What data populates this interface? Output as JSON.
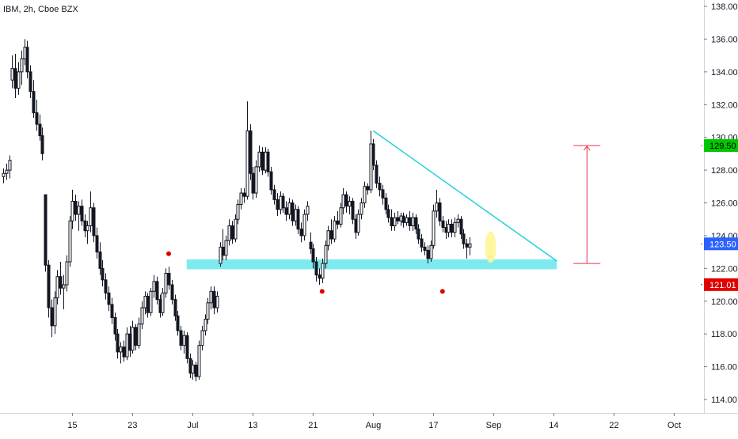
{
  "symbol": "IBM, 2h, Cboe BZX",
  "chart_data": {
    "type": "candlestick",
    "title": "IBM, 2h, Cboe BZX",
    "ylim": [
      113.5,
      138.5
    ],
    "y_ticks": [
      114,
      116,
      118,
      120,
      122,
      124,
      126,
      128,
      130,
      132,
      134,
      136,
      138
    ],
    "y_tick_labels": [
      "114.00",
      "116.00",
      "118.00",
      "120.00",
      "122.00",
      "124.00",
      "126.00",
      "128.00",
      "130.00",
      "132.00",
      "134.00",
      "136.00",
      "138.00"
    ],
    "x_ticks": [
      {
        "label": "15",
        "bar": 23
      },
      {
        "label": "23",
        "bar": 43
      },
      {
        "label": "Jul",
        "bar": 63
      },
      {
        "label": "13",
        "bar": 83
      },
      {
        "label": "21",
        "bar": 103
      },
      {
        "label": "Aug",
        "bar": 123
      },
      {
        "label": "17",
        "bar": 143
      },
      {
        "label": "Sep",
        "bar": 163
      },
      {
        "label": "14",
        "bar": 183
      },
      {
        "label": "22",
        "bar": 203
      },
      {
        "label": "Oct",
        "bar": 223
      }
    ],
    "price_badges": [
      {
        "label": "129.50",
        "value": 129.5,
        "color": "#00c800",
        "text_color": "#000000"
      },
      {
        "label": "123.50",
        "value": 123.5,
        "color": "#2962ff",
        "text_color": "#ffffff"
      },
      {
        "label": "121.01",
        "value": 121.01,
        "color": "#e00000",
        "text_color": "#ffffff"
      }
    ],
    "candles": [
      {
        "o": 127.6,
        "h": 128.1,
        "l": 127.2,
        "c": 127.8
      },
      {
        "o": 127.8,
        "h": 128.4,
        "l": 127.4,
        "c": 128.0
      },
      {
        "o": 128.0,
        "h": 128.9,
        "l": 127.5,
        "c": 128.6
      },
      {
        "o": 133.5,
        "h": 135.0,
        "l": 133.0,
        "c": 134.2
      },
      {
        "o": 134.2,
        "h": 135.1,
        "l": 132.4,
        "c": 133.0
      },
      {
        "o": 133.0,
        "h": 134.6,
        "l": 132.6,
        "c": 134.0
      },
      {
        "o": 134.0,
        "h": 135.3,
        "l": 133.2,
        "c": 134.8
      },
      {
        "o": 134.8,
        "h": 136.0,
        "l": 134.4,
        "c": 135.5
      },
      {
        "o": 135.5,
        "h": 135.9,
        "l": 133.6,
        "c": 134.0
      },
      {
        "o": 134.0,
        "h": 134.4,
        "l": 132.4,
        "c": 132.8
      },
      {
        "o": 132.8,
        "h": 133.5,
        "l": 131.2,
        "c": 131.5
      },
      {
        "o": 131.5,
        "h": 132.3,
        "l": 130.4,
        "c": 130.8
      },
      {
        "o": 130.8,
        "h": 131.4,
        "l": 129.8,
        "c": 130.1
      },
      {
        "o": 130.1,
        "h": 130.6,
        "l": 128.6,
        "c": 129.0
      },
      {
        "o": 126.5,
        "h": 126.5,
        "l": 121.8,
        "c": 122.2
      },
      {
        "o": 122.2,
        "h": 122.5,
        "l": 119.0,
        "c": 119.6
      },
      {
        "o": 119.6,
        "h": 120.1,
        "l": 117.8,
        "c": 118.5
      },
      {
        "o": 118.5,
        "h": 120.6,
        "l": 118.0,
        "c": 120.2
      },
      {
        "o": 120.2,
        "h": 121.9,
        "l": 119.8,
        "c": 121.5
      },
      {
        "o": 121.5,
        "h": 122.4,
        "l": 120.4,
        "c": 120.8
      },
      {
        "o": 120.8,
        "h": 121.6,
        "l": 119.5,
        "c": 121.0
      },
      {
        "o": 121.0,
        "h": 122.8,
        "l": 120.6,
        "c": 122.4
      },
      {
        "o": 122.4,
        "h": 125.2,
        "l": 122.1,
        "c": 124.9
      },
      {
        "o": 124.9,
        "h": 126.8,
        "l": 124.4,
        "c": 126.1
      },
      {
        "o": 126.1,
        "h": 126.5,
        "l": 124.9,
        "c": 125.3
      },
      {
        "o": 125.3,
        "h": 126.1,
        "l": 124.3,
        "c": 125.8
      },
      {
        "o": 125.8,
        "h": 126.2,
        "l": 124.6,
        "c": 124.9
      },
      {
        "o": 124.9,
        "h": 125.3,
        "l": 123.9,
        "c": 124.3
      },
      {
        "o": 124.3,
        "h": 124.9,
        "l": 123.5,
        "c": 124.6
      },
      {
        "o": 124.6,
        "h": 126.7,
        "l": 124.2,
        "c": 125.7
      },
      {
        "o": 125.7,
        "h": 126.0,
        "l": 123.6,
        "c": 124.0
      },
      {
        "o": 124.0,
        "h": 124.5,
        "l": 122.6,
        "c": 123.0
      },
      {
        "o": 123.0,
        "h": 123.6,
        "l": 121.6,
        "c": 122.0
      },
      {
        "o": 122.0,
        "h": 122.5,
        "l": 120.9,
        "c": 121.3
      },
      {
        "o": 121.3,
        "h": 121.7,
        "l": 120.1,
        "c": 120.5
      },
      {
        "o": 120.5,
        "h": 120.9,
        "l": 119.4,
        "c": 119.8
      },
      {
        "o": 119.8,
        "h": 120.2,
        "l": 118.6,
        "c": 119.0
      },
      {
        "o": 119.0,
        "h": 119.3,
        "l": 117.6,
        "c": 118.0
      },
      {
        "o": 118.0,
        "h": 118.3,
        "l": 116.5,
        "c": 116.9
      },
      {
        "o": 116.9,
        "h": 117.5,
        "l": 116.2,
        "c": 117.2
      },
      {
        "o": 117.2,
        "h": 117.6,
        "l": 116.3,
        "c": 116.6
      },
      {
        "o": 116.6,
        "h": 118.4,
        "l": 116.4,
        "c": 118.0
      },
      {
        "o": 118.0,
        "h": 118.5,
        "l": 116.6,
        "c": 117.0
      },
      {
        "o": 117.0,
        "h": 118.8,
        "l": 116.8,
        "c": 118.4
      },
      {
        "o": 118.4,
        "h": 118.6,
        "l": 117.0,
        "c": 117.3
      },
      {
        "o": 117.3,
        "h": 119.0,
        "l": 117.1,
        "c": 118.6
      },
      {
        "o": 118.6,
        "h": 120.0,
        "l": 118.3,
        "c": 119.6
      },
      {
        "o": 119.6,
        "h": 120.6,
        "l": 119.2,
        "c": 120.3
      },
      {
        "o": 120.3,
        "h": 120.5,
        "l": 119.0,
        "c": 119.3
      },
      {
        "o": 119.3,
        "h": 120.8,
        "l": 119.1,
        "c": 120.6
      },
      {
        "o": 120.6,
        "h": 121.6,
        "l": 120.2,
        "c": 121.2
      },
      {
        "o": 121.2,
        "h": 121.5,
        "l": 119.8,
        "c": 120.1
      },
      {
        "o": 120.1,
        "h": 120.4,
        "l": 119.0,
        "c": 119.3
      },
      {
        "o": 119.3,
        "h": 120.8,
        "l": 119.1,
        "c": 120.5
      },
      {
        "o": 120.5,
        "h": 122.0,
        "l": 120.2,
        "c": 121.7
      },
      {
        "o": 121.7,
        "h": 122.1,
        "l": 120.7,
        "c": 121.0
      },
      {
        "o": 121.0,
        "h": 121.3,
        "l": 119.8,
        "c": 120.1
      },
      {
        "o": 120.1,
        "h": 120.4,
        "l": 118.8,
        "c": 119.1
      },
      {
        "o": 119.1,
        "h": 119.4,
        "l": 117.9,
        "c": 118.2
      },
      {
        "o": 118.2,
        "h": 118.5,
        "l": 117.0,
        "c": 117.3
      },
      {
        "o": 117.3,
        "h": 118.2,
        "l": 116.8,
        "c": 117.9
      },
      {
        "o": 117.9,
        "h": 118.1,
        "l": 116.2,
        "c": 116.5
      },
      {
        "o": 116.5,
        "h": 116.8,
        "l": 115.3,
        "c": 115.6
      },
      {
        "o": 115.6,
        "h": 116.4,
        "l": 115.2,
        "c": 116.1
      },
      {
        "o": 116.1,
        "h": 116.3,
        "l": 115.1,
        "c": 115.4
      },
      {
        "o": 115.4,
        "h": 117.6,
        "l": 115.2,
        "c": 117.3
      },
      {
        "o": 117.3,
        "h": 118.5,
        "l": 117.0,
        "c": 118.2
      },
      {
        "o": 118.2,
        "h": 119.2,
        "l": 117.9,
        "c": 118.9
      },
      {
        "o": 118.9,
        "h": 120.2,
        "l": 118.6,
        "c": 119.9
      },
      {
        "o": 119.9,
        "h": 120.9,
        "l": 119.5,
        "c": 120.6
      },
      {
        "o": 120.6,
        "h": 120.9,
        "l": 119.2,
        "c": 119.6
      },
      {
        "o": 119.6,
        "h": 120.6,
        "l": 119.3,
        "c": 120.3
      },
      {
        "o": 122.3,
        "h": 123.6,
        "l": 122.1,
        "c": 123.3
      },
      {
        "o": 123.3,
        "h": 124.4,
        "l": 122.5,
        "c": 122.8
      },
      {
        "o": 122.8,
        "h": 124.0,
        "l": 122.5,
        "c": 123.7
      },
      {
        "o": 123.7,
        "h": 125.0,
        "l": 123.4,
        "c": 124.6
      },
      {
        "o": 124.6,
        "h": 124.9,
        "l": 123.5,
        "c": 123.8
      },
      {
        "o": 123.8,
        "h": 125.3,
        "l": 123.6,
        "c": 125.0
      },
      {
        "o": 125.0,
        "h": 126.2,
        "l": 124.7,
        "c": 125.9
      },
      {
        "o": 125.9,
        "h": 126.9,
        "l": 125.6,
        "c": 126.6
      },
      {
        "o": 126.6,
        "h": 126.9,
        "l": 126.0,
        "c": 126.4
      },
      {
        "o": 126.4,
        "h": 132.2,
        "l": 126.2,
        "c": 130.4
      },
      {
        "o": 130.4,
        "h": 130.8,
        "l": 127.4,
        "c": 127.8
      },
      {
        "o": 127.8,
        "h": 128.2,
        "l": 126.2,
        "c": 126.6
      },
      {
        "o": 126.6,
        "h": 128.6,
        "l": 126.3,
        "c": 128.2
      },
      {
        "o": 128.2,
        "h": 129.5,
        "l": 127.9,
        "c": 129.1
      },
      {
        "o": 129.1,
        "h": 129.4,
        "l": 127.7,
        "c": 128.0
      },
      {
        "o": 128.0,
        "h": 129.4,
        "l": 127.8,
        "c": 129.1
      },
      {
        "o": 129.1,
        "h": 129.3,
        "l": 127.6,
        "c": 127.9
      },
      {
        "o": 127.9,
        "h": 128.2,
        "l": 126.5,
        "c": 126.8
      },
      {
        "o": 126.8,
        "h": 127.1,
        "l": 125.9,
        "c": 126.2
      },
      {
        "o": 126.2,
        "h": 126.6,
        "l": 125.2,
        "c": 125.6
      },
      {
        "o": 125.6,
        "h": 126.7,
        "l": 125.3,
        "c": 126.4
      },
      {
        "o": 126.4,
        "h": 126.6,
        "l": 125.4,
        "c": 125.7
      },
      {
        "o": 125.7,
        "h": 126.1,
        "l": 124.9,
        "c": 125.3
      },
      {
        "o": 125.3,
        "h": 126.3,
        "l": 125.0,
        "c": 126.0
      },
      {
        "o": 126.0,
        "h": 126.2,
        "l": 124.6,
        "c": 124.9
      },
      {
        "o": 124.9,
        "h": 125.9,
        "l": 124.6,
        "c": 125.6
      },
      {
        "o": 125.6,
        "h": 125.8,
        "l": 124.1,
        "c": 124.4
      },
      {
        "o": 124.4,
        "h": 124.8,
        "l": 123.6,
        "c": 124.0
      },
      {
        "o": 124.0,
        "h": 125.6,
        "l": 123.7,
        "c": 125.3
      },
      {
        "o": 125.3,
        "h": 126.1,
        "l": 124.9,
        "c": 125.8
      },
      {
        "o": 123.6,
        "h": 124.2,
        "l": 122.9,
        "c": 123.2
      },
      {
        "o": 123.2,
        "h": 123.5,
        "l": 122.0,
        "c": 122.4
      },
      {
        "o": 122.4,
        "h": 122.7,
        "l": 121.2,
        "c": 121.6
      },
      {
        "o": 121.6,
        "h": 122.0,
        "l": 121.0,
        "c": 121.4
      },
      {
        "o": 121.4,
        "h": 122.6,
        "l": 121.1,
        "c": 122.3
      },
      {
        "o": 122.3,
        "h": 123.7,
        "l": 122.0,
        "c": 123.4
      },
      {
        "o": 123.4,
        "h": 124.6,
        "l": 123.1,
        "c": 124.3
      },
      {
        "o": 124.3,
        "h": 125.0,
        "l": 123.5,
        "c": 123.8
      },
      {
        "o": 123.8,
        "h": 125.2,
        "l": 123.6,
        "c": 124.9
      },
      {
        "o": 124.9,
        "h": 125.5,
        "l": 124.4,
        "c": 124.7
      },
      {
        "o": 124.7,
        "h": 126.0,
        "l": 124.5,
        "c": 125.7
      },
      {
        "o": 125.7,
        "h": 126.9,
        "l": 125.3,
        "c": 126.5
      },
      {
        "o": 126.5,
        "h": 126.7,
        "l": 125.4,
        "c": 125.8
      },
      {
        "o": 125.8,
        "h": 126.4,
        "l": 125.3,
        "c": 126.1
      },
      {
        "o": 126.1,
        "h": 126.3,
        "l": 124.7,
        "c": 125.0
      },
      {
        "o": 125.0,
        "h": 125.3,
        "l": 123.8,
        "c": 124.2
      },
      {
        "o": 124.2,
        "h": 125.6,
        "l": 124.0,
        "c": 125.3
      },
      {
        "o": 125.3,
        "h": 126.3,
        "l": 125.0,
        "c": 126.0
      },
      {
        "o": 126.0,
        "h": 127.3,
        "l": 125.7,
        "c": 127.0
      },
      {
        "o": 127.0,
        "h": 127.2,
        "l": 126.5,
        "c": 126.8
      },
      {
        "o": 126.8,
        "h": 130.4,
        "l": 126.6,
        "c": 129.6
      },
      {
        "o": 129.6,
        "h": 129.9,
        "l": 128.0,
        "c": 128.3
      },
      {
        "o": 128.3,
        "h": 128.6,
        "l": 126.9,
        "c": 127.2
      },
      {
        "o": 127.2,
        "h": 127.6,
        "l": 126.4,
        "c": 126.8
      },
      {
        "o": 126.8,
        "h": 127.1,
        "l": 125.9,
        "c": 126.3
      },
      {
        "o": 126.3,
        "h": 126.6,
        "l": 125.3,
        "c": 125.6
      },
      {
        "o": 125.6,
        "h": 125.9,
        "l": 124.8,
        "c": 125.1
      },
      {
        "o": 125.1,
        "h": 125.6,
        "l": 124.3,
        "c": 124.6
      },
      {
        "o": 124.6,
        "h": 125.4,
        "l": 124.3,
        "c": 125.1
      },
      {
        "o": 125.1,
        "h": 125.5,
        "l": 124.7,
        "c": 124.9
      },
      {
        "o": 124.9,
        "h": 125.4,
        "l": 124.6,
        "c": 125.2
      },
      {
        "o": 125.2,
        "h": 125.4,
        "l": 124.5,
        "c": 124.8
      },
      {
        "o": 124.8,
        "h": 125.3,
        "l": 124.6,
        "c": 125.1
      },
      {
        "o": 125.1,
        "h": 125.5,
        "l": 124.3,
        "c": 124.6
      },
      {
        "o": 124.6,
        "h": 125.4,
        "l": 124.3,
        "c": 125.1
      },
      {
        "o": 125.1,
        "h": 125.3,
        "l": 124.1,
        "c": 124.4
      },
      {
        "o": 124.4,
        "h": 124.7,
        "l": 123.5,
        "c": 123.8
      },
      {
        "o": 123.8,
        "h": 124.1,
        "l": 123.0,
        "c": 123.3
      },
      {
        "o": 123.3,
        "h": 123.6,
        "l": 122.8,
        "c": 123.1
      },
      {
        "o": 123.1,
        "h": 123.4,
        "l": 122.3,
        "c": 122.6
      },
      {
        "o": 122.6,
        "h": 123.7,
        "l": 122.4,
        "c": 123.4
      },
      {
        "o": 123.4,
        "h": 125.9,
        "l": 123.2,
        "c": 125.5
      },
      {
        "o": 125.5,
        "h": 126.8,
        "l": 125.1,
        "c": 126.0
      },
      {
        "o": 126.0,
        "h": 126.3,
        "l": 124.6,
        "c": 124.9
      },
      {
        "o": 124.9,
        "h": 125.2,
        "l": 124.2,
        "c": 124.5
      },
      {
        "o": 124.5,
        "h": 124.9,
        "l": 123.8,
        "c": 124.2
      },
      {
        "o": 124.2,
        "h": 125.0,
        "l": 123.9,
        "c": 124.7
      },
      {
        "o": 124.7,
        "h": 125.0,
        "l": 123.9,
        "c": 124.2
      },
      {
        "o": 124.2,
        "h": 125.1,
        "l": 123.9,
        "c": 124.8
      },
      {
        "o": 124.8,
        "h": 125.3,
        "l": 124.5,
        "c": 125.0
      },
      {
        "o": 125.0,
        "h": 125.2,
        "l": 123.8,
        "c": 124.1
      },
      {
        "o": 124.1,
        "h": 124.4,
        "l": 123.2,
        "c": 123.5
      },
      {
        "o": 123.5,
        "h": 123.8,
        "l": 122.6,
        "c": 123.3
      },
      {
        "o": 123.3,
        "h": 123.9,
        "l": 122.8,
        "c": 123.5
      }
    ],
    "drawings": {
      "support_zone": {
        "from_bar": 61,
        "to_bar": 184,
        "y_top": 122.55,
        "y_bottom": 121.95,
        "color": "#7deaf0"
      },
      "trendline": {
        "from_bar": 123,
        "from_y": 130.4,
        "to_bar": 184,
        "to_y": 122.45,
        "color": "#1fd3dd"
      },
      "measure": {
        "bar": 194,
        "y_top": 129.5,
        "y_bottom": 122.3,
        "color": "#e8344a"
      },
      "markers": [
        {
          "bar": 55,
          "value": 122.9
        },
        {
          "bar": 106,
          "value": 120.6
        },
        {
          "bar": 146,
          "value": 120.6
        }
      ],
      "highlight": {
        "bar": 162,
        "value": 123.3,
        "color": "#fff59a"
      }
    }
  }
}
